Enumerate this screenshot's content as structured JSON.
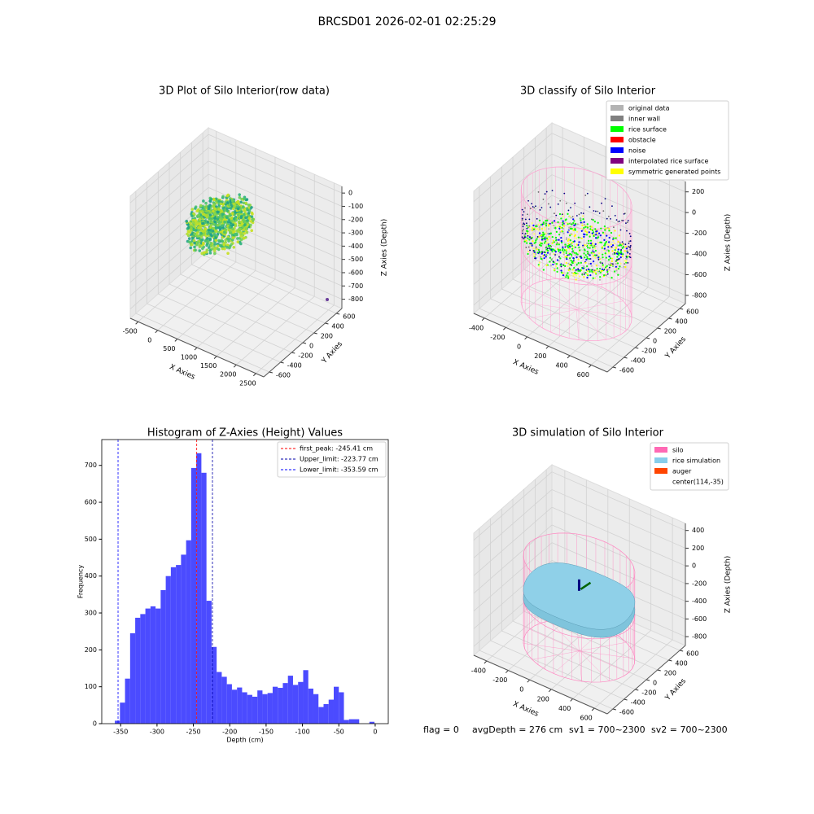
{
  "title": "BRCSD01 2026-02-01 02:25:29",
  "chart_data": [
    {
      "type": "scatter3d",
      "title": "3D Plot of Silo Interior(row data)",
      "xlabel": "X Axies",
      "ylabel": "Y Axies",
      "zlabel": "Z Axies (Depth)",
      "xlim": [
        -700,
        2700
      ],
      "ylim": [
        -700,
        700
      ],
      "zlim": [
        -870,
        50
      ],
      "xticks": [
        -500,
        0,
        500,
        1000,
        1500,
        2000,
        2500
      ],
      "yticks": [
        -600,
        -400,
        -200,
        0,
        200,
        400,
        600
      ],
      "zticks": [
        0,
        -100,
        -200,
        -300,
        -400,
        -500,
        -600,
        -700,
        -800
      ]
    },
    {
      "type": "classify3d",
      "title": "3D classify of Silo Interior",
      "xlabel": "X Axies",
      "ylabel": "Y Axies",
      "zlabel": "Z Axies (Depth)",
      "xlim": [
        -500,
        750
      ],
      "ylim": [
        -700,
        700
      ],
      "zlim": [
        -880,
        300
      ],
      "xticks": [
        -400,
        -200,
        0,
        200,
        400,
        600
      ],
      "yticks": [
        -600,
        -400,
        -200,
        0,
        200,
        400,
        600
      ],
      "zticks": [
        200,
        0,
        -200,
        -400,
        -600,
        -800
      ],
      "legend": [
        {
          "name": "original data",
          "color": "#b3b3b3"
        },
        {
          "name": "inner wall",
          "color": "#808080"
        },
        {
          "name": "rice surface",
          "color": "#00ff00"
        },
        {
          "name": "obstacle",
          "color": "#ff0000"
        },
        {
          "name": "noise",
          "color": "#0000ff"
        },
        {
          "name": "interpolated rice surface",
          "color": "#800080"
        },
        {
          "name": "symmetric generated points",
          "color": "#ffff00"
        }
      ]
    },
    {
      "type": "histogram",
      "title": "Histogram of Z-Axies (Height) Values",
      "xlabel": "Depth (cm)",
      "ylabel": "Frequency",
      "color": "#4b4bff",
      "bins": [
        -358,
        -351,
        -344,
        -337,
        -330,
        -323,
        -316,
        -309,
        -302,
        -295,
        -288,
        -281,
        -274,
        -267,
        -260,
        -253,
        -246,
        -239,
        -232,
        -225,
        -218,
        -211,
        -204,
        -197,
        -190,
        -183,
        -176,
        -169,
        -162,
        -155,
        -148,
        -141,
        -134,
        -127,
        -120,
        -113,
        -106,
        -99,
        -92,
        -85,
        -78,
        -71,
        -64,
        -57,
        -50,
        -43,
        -36,
        -29,
        -22,
        -15,
        -8,
        -1
      ],
      "values": [
        8,
        57,
        122,
        245,
        287,
        297,
        312,
        318,
        312,
        362,
        400,
        424,
        430,
        458,
        497,
        693,
        733,
        680,
        333,
        208,
        140,
        127,
        107,
        92,
        98,
        85,
        78,
        73,
        90,
        80,
        83,
        100,
        97,
        110,
        130,
        105,
        113,
        145,
        95,
        80,
        45,
        53,
        65,
        100,
        85,
        10,
        12,
        12,
        0,
        0,
        5
      ],
      "xlim": [
        -376,
        18
      ],
      "ylim": [
        0,
        770
      ],
      "xticks": [
        -350,
        -300,
        -250,
        -200,
        -150,
        -100,
        -50,
        0
      ],
      "yticks": [
        0,
        100,
        200,
        300,
        400,
        500,
        600,
        700
      ],
      "vlines": [
        {
          "name": "first_peak: -245.41 cm",
          "value": -245.41,
          "color": "#ff0000"
        },
        {
          "name": "Upper_limit: -223.77 cm",
          "value": -223.77,
          "color": "#0000aa"
        },
        {
          "name": "Lower_limit: -353.59 cm",
          "value": -353.59,
          "color": "#0000ff"
        }
      ]
    },
    {
      "type": "surface3d",
      "title": "3D simulation of Silo Interior",
      "xlabel": "X Axies",
      "ylabel": "Y Axies",
      "zlabel": "Z Axies (Depth)",
      "xlim": [
        -520,
        720
      ],
      "ylim": [
        -700,
        700
      ],
      "zlim": [
        -900,
        480
      ],
      "xticks": [
        -400,
        -200,
        0,
        200,
        400,
        600
      ],
      "yticks": [
        -600,
        -400,
        -200,
        0,
        200,
        400,
        600
      ],
      "zticks": [
        400,
        200,
        0,
        -200,
        -400,
        -600,
        -800
      ],
      "legend": [
        {
          "name": "silo",
          "color": "#ff69b4"
        },
        {
          "name": "rice simulation",
          "color": "#87ceeb"
        },
        {
          "name": "auger",
          "color": "#ff4500"
        },
        {
          "name": "center(114,-35)"
        }
      ]
    }
  ],
  "footer": [
    "flag = 0",
    "avgDepth = 276 cm",
    "sv1 = 700~2300",
    "sv2 = 700~2300"
  ]
}
